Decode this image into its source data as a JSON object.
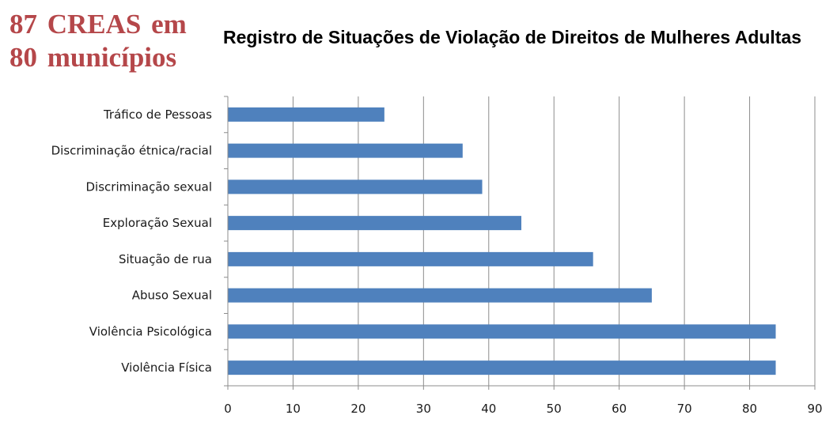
{
  "headline": {
    "line1": "87 CREAS em",
    "line2": "80 municípios"
  },
  "colors": {
    "headline": "#b5474a",
    "bar": "#4f81bd",
    "grid": "#8c8c8c"
  },
  "chart_data": {
    "type": "bar",
    "orientation": "horizontal",
    "title": "Registro de Situações de Violação de Direitos de Mulheres Adultas",
    "xlabel": "",
    "ylabel": "",
    "categories": [
      "Tráfico de Pessoas",
      "Discriminação étnica/racial",
      "Discriminação sexual",
      "Exploração Sexual",
      "Situação de rua",
      "Abuso Sexual",
      "Violência Psicológica",
      "Violência Física"
    ],
    "values": [
      24,
      36,
      39,
      45,
      56,
      65,
      84,
      84
    ],
    "xlim": [
      0,
      90
    ],
    "xticks": [
      0,
      10,
      20,
      30,
      40,
      50,
      60,
      70,
      80,
      90
    ],
    "grid": true,
    "legend": "none"
  }
}
